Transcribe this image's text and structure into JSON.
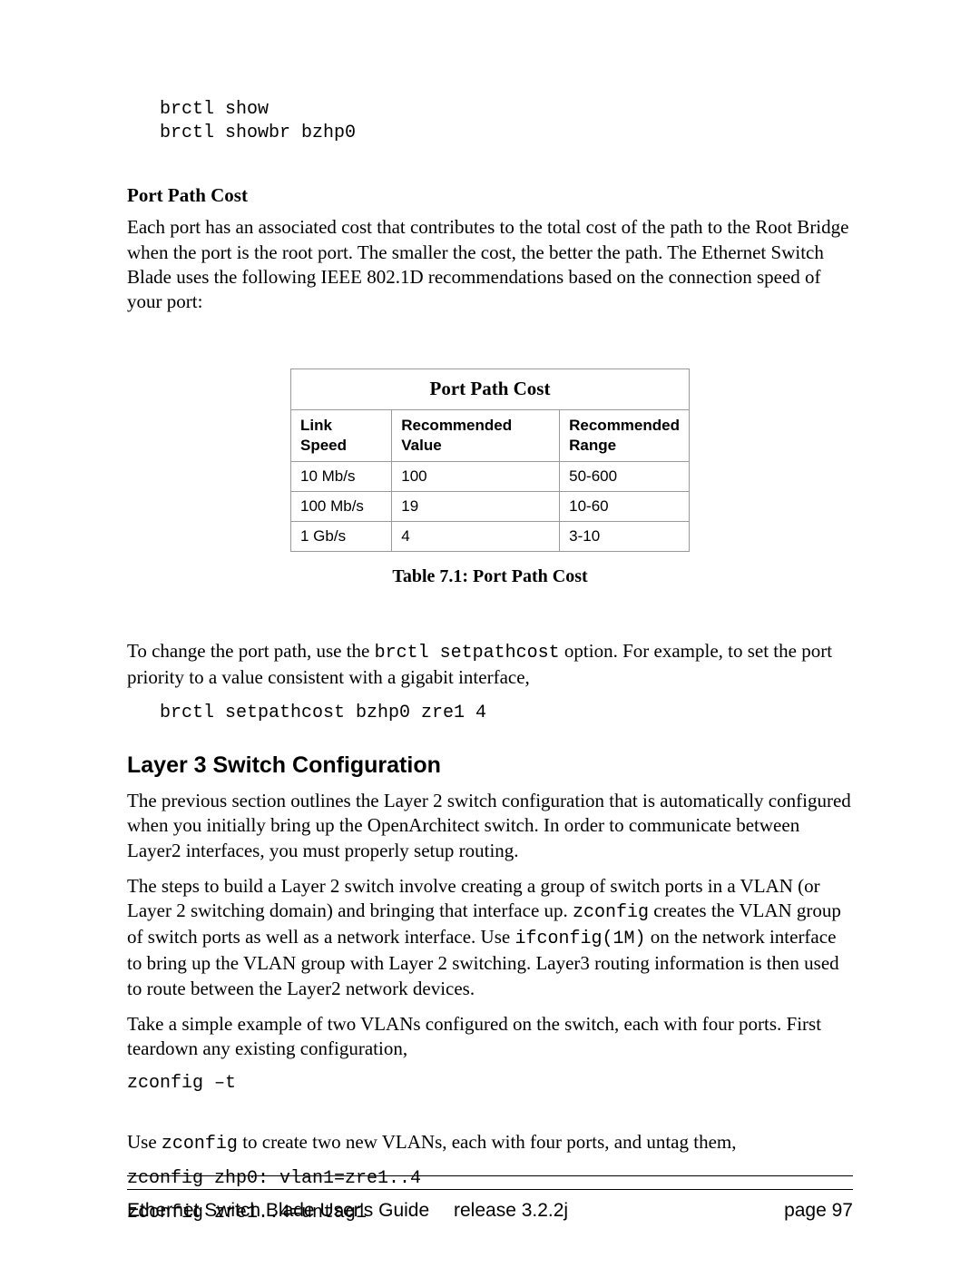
{
  "code_block_top_line1": "brctl show",
  "code_block_top_line2": "brctl showbr bzhp0",
  "section_sub_heading": "Port Path Cost",
  "para1": "Each port has an associated cost that contributes to the total cost of the path to the Root Bridge when the port is the root port. The smaller the cost, the better the path. The Ethernet Switch Blade uses the following IEEE 802.1D recommendations based on the connection speed of your port:",
  "table": {
    "title": "Port Path Cost",
    "columns": {
      "c1": "Link Speed",
      "c2": "Recommended Value",
      "c3": "Recommended Range"
    },
    "rows": [
      {
        "c1": "10 Mb/s",
        "c2": "100",
        "c3": "50-600"
      },
      {
        "c1": "100 Mb/s",
        "c2": "19",
        "c3": "10-60"
      },
      {
        "c1": "1 Gb/s",
        "c2": "4",
        "c3": "3-10"
      }
    ],
    "caption": "Table 7.1: Port Path Cost"
  },
  "para2_a": "To change the port path, use the ",
  "para2_code": "brctl setpathcost",
  "para2_b": " option. For example, to set the port priority to a value consistent with a gigabit interface,",
  "code_line_setpathcost": "brctl setpathcost bzhp0 zre1 4",
  "section_main_heading": "Layer 3 Switch Configuration",
  "para3": "The previous section outlines the Layer 2 switch configuration that is automatically configured when you initially bring up the OpenArchitect switch. In order to communicate between Layer2 interfaces, you must properly setup routing.",
  "para4_a": "The steps to build a Layer 2 switch involve creating a group of switch ports in a VLAN (or Layer 2 switching domain) and bringing that interface up. ",
  "para4_code1": "zconfig",
  "para4_b": " creates the VLAN group of switch ports as well as a network interface. Use ",
  "para4_code2": "ifconfig(1M)",
  "para4_c": " on the network interface to bring up the VLAN group with Layer 2 switching. Layer3 routing information is then used to route between the Layer2 network devices.",
  "para5": "Take a simple example of two VLANs configured on the switch, each with four ports. First teardown any existing configuration,",
  "code_zconfig_t": "zconfig –t",
  "para6_a": "Use ",
  "para6_code": "zconfig",
  "para6_b": " to create two new VLANs, each with four ports, and untag them,",
  "code_zhp0": "zconfig zhp0: vlan1=zre1..4",
  "code_untag": "zconfig zre1..4=untag1",
  "footer": {
    "left": "Ethernet Switch Blade User's Guide",
    "mid_label": "release ",
    "mid_value": "3.2.2j",
    "right": "page 97"
  }
}
